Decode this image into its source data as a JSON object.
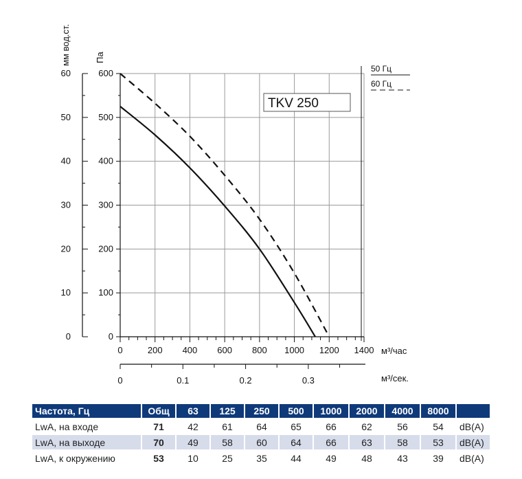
{
  "chart_data": {
    "type": "line",
    "model_label": "TKV 250",
    "y_axis_left": {
      "label": "мм вод.ст.",
      "ticks": [
        0,
        10,
        20,
        30,
        40,
        50,
        60
      ]
    },
    "y_axis_right": {
      "label": "Па",
      "ticks": [
        0,
        100,
        200,
        300,
        400,
        500,
        600
      ]
    },
    "x_axis_main": {
      "label": "м³/час",
      "ticks": [
        0,
        200,
        400,
        600,
        800,
        1000,
        1200,
        1400
      ],
      "range": [
        0,
        1400
      ]
    },
    "x_axis_secondary": {
      "label": "м³/сек.",
      "ticks": [
        "0",
        "0.1",
        "0.2",
        "0.3"
      ],
      "tick_values": [
        0,
        0.1,
        0.2,
        0.3
      ]
    },
    "ylim": [
      0,
      600
    ],
    "legend": [
      {
        "name": "50 Гц",
        "style": "solid"
      },
      {
        "name": "60 Гц",
        "style": "dashed"
      }
    ],
    "series": [
      {
        "name": "50 Гц",
        "style": "solid",
        "x": [
          0,
          200,
          400,
          600,
          800,
          1000,
          1120
        ],
        "y": [
          525,
          460,
          385,
          298,
          200,
          78,
          0
        ]
      },
      {
        "name": "60 Гц",
        "style": "dashed",
        "x": [
          0,
          200,
          400,
          600,
          800,
          1000,
          1200
        ],
        "y": [
          600,
          532,
          457,
          368,
          268,
          145,
          0
        ]
      }
    ]
  },
  "table": {
    "headers": [
      "Частота, Гц",
      "Общ",
      "63",
      "125",
      "250",
      "500",
      "1000",
      "2000",
      "4000",
      "8000",
      ""
    ],
    "rows": [
      {
        "label": "LwA, на входе",
        "total": "71",
        "values": [
          "42",
          "61",
          "64",
          "65",
          "66",
          "62",
          "56",
          "54"
        ],
        "unit": "dB(A)"
      },
      {
        "label": "LwA, на выходе",
        "total": "70",
        "values": [
          "49",
          "58",
          "60",
          "64",
          "66",
          "63",
          "58",
          "53"
        ],
        "unit": "dB(A)"
      },
      {
        "label": "LwA, к окружению",
        "total": "53",
        "values": [
          "10",
          "25",
          "35",
          "44",
          "49",
          "48",
          "43",
          "39"
        ],
        "unit": "dB(A)"
      }
    ]
  }
}
